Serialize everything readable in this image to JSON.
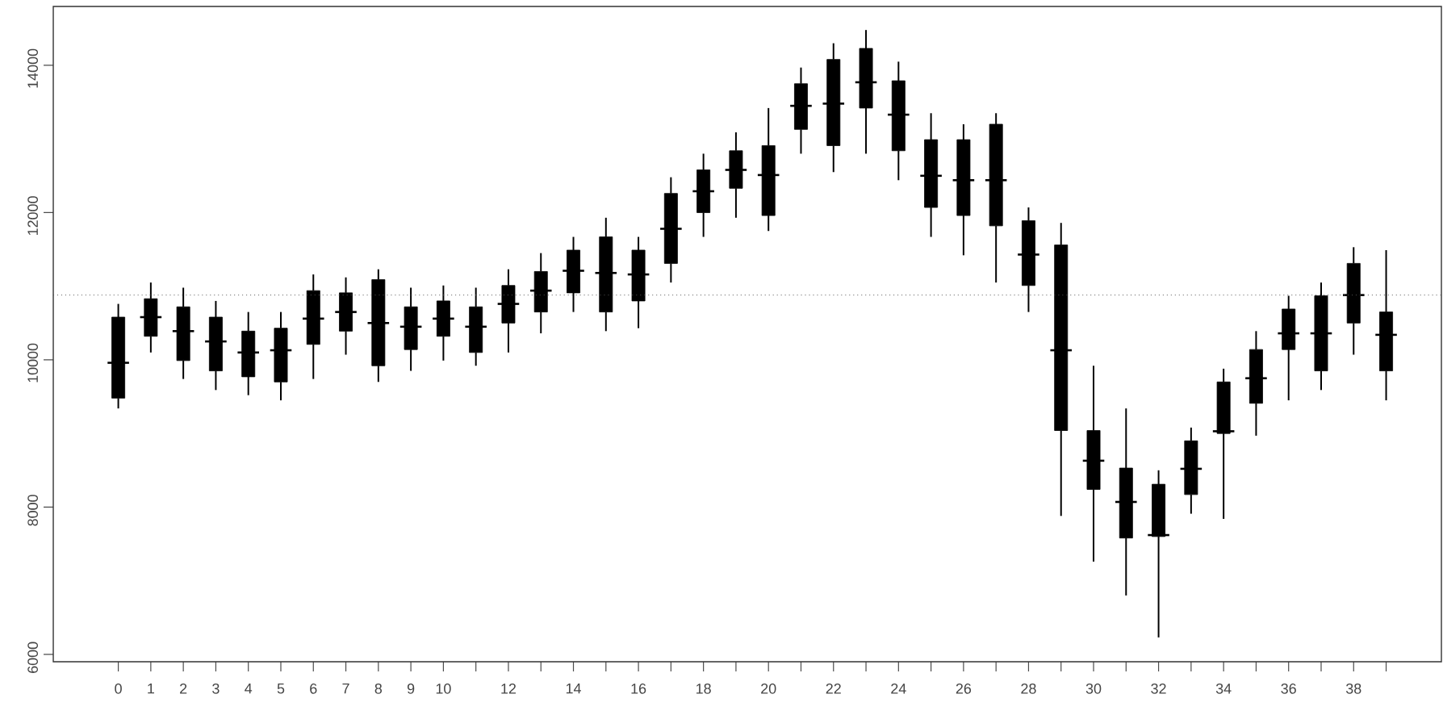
{
  "chart_data": {
    "type": "box",
    "categories": [
      "0",
      "1",
      "2",
      "3",
      "4",
      "5",
      "6",
      "7",
      "8",
      "9",
      "10",
      null,
      "12",
      null,
      "14",
      null,
      "16",
      null,
      "18",
      null,
      "20",
      null,
      "22",
      null,
      "24",
      null,
      "26",
      null,
      "28",
      null,
      "30",
      null,
      "32",
      null,
      "34",
      null,
      "36",
      null,
      "38",
      null
    ],
    "series": [
      {
        "color": "#000000",
        "boxes": [
          {
            "low": 9340,
            "q1": 9480,
            "median": 9960,
            "q3": 10580,
            "high": 10760
          },
          {
            "low": 10100,
            "q1": 10320,
            "median": 10580,
            "q3": 10830,
            "high": 11050
          },
          {
            "low": 9740,
            "q1": 9990,
            "median": 10390,
            "q3": 10720,
            "high": 10980
          },
          {
            "low": 9590,
            "q1": 9850,
            "median": 10250,
            "q3": 10580,
            "high": 10800
          },
          {
            "low": 9520,
            "q1": 9770,
            "median": 10100,
            "q3": 10390,
            "high": 10650
          },
          {
            "low": 9450,
            "q1": 9700,
            "median": 10130,
            "q3": 10430,
            "high": 10650
          },
          {
            "low": 9740,
            "q1": 10210,
            "median": 10560,
            "q3": 10940,
            "high": 11160
          },
          {
            "low": 10070,
            "q1": 10390,
            "median": 10650,
            "q3": 10910,
            "high": 11120
          },
          {
            "low": 9700,
            "q1": 9920,
            "median": 10500,
            "q3": 11090,
            "high": 11230
          },
          {
            "low": 9850,
            "q1": 10140,
            "median": 10450,
            "q3": 10720,
            "high": 10980
          },
          {
            "low": 9990,
            "q1": 10320,
            "median": 10560,
            "q3": 10800,
            "high": 11010
          },
          {
            "low": 9920,
            "q1": 10100,
            "median": 10450,
            "q3": 10720,
            "high": 10980
          },
          {
            "low": 10100,
            "q1": 10500,
            "median": 10760,
            "q3": 11010,
            "high": 11230
          },
          {
            "low": 10360,
            "q1": 10650,
            "median": 10940,
            "q3": 11200,
            "high": 11450
          },
          {
            "low": 10650,
            "q1": 10910,
            "median": 11210,
            "q3": 11490,
            "high": 11670
          },
          {
            "low": 10390,
            "q1": 10650,
            "median": 11180,
            "q3": 11670,
            "high": 11930
          },
          {
            "low": 10430,
            "q1": 10800,
            "median": 11160,
            "q3": 11490,
            "high": 11670
          },
          {
            "low": 11050,
            "q1": 11310,
            "median": 11780,
            "q3": 12260,
            "high": 12480
          },
          {
            "low": 11670,
            "q1": 12000,
            "median": 12290,
            "q3": 12580,
            "high": 12800
          },
          {
            "low": 11930,
            "q1": 12330,
            "median": 12580,
            "q3": 12840,
            "high": 13090
          },
          {
            "low": 11750,
            "q1": 11960,
            "median": 12510,
            "q3": 12910,
            "high": 13420
          },
          {
            "low": 12800,
            "q1": 13130,
            "median": 13450,
            "q3": 13750,
            "high": 13970
          },
          {
            "low": 12550,
            "q1": 12910,
            "median": 13480,
            "q3": 14080,
            "high": 14300
          },
          {
            "low": 12800,
            "q1": 13420,
            "median": 13770,
            "q3": 14230,
            "high": 14480
          },
          {
            "low": 12440,
            "q1": 12840,
            "median": 13330,
            "q3": 13790,
            "high": 14050
          },
          {
            "low": 11670,
            "q1": 12070,
            "median": 12500,
            "q3": 12990,
            "high": 13350
          },
          {
            "low": 11420,
            "q1": 11960,
            "median": 12440,
            "q3": 12990,
            "high": 13200
          },
          {
            "low": 11050,
            "q1": 11820,
            "median": 12440,
            "q3": 13200,
            "high": 13350
          },
          {
            "low": 10650,
            "q1": 11010,
            "median": 11430,
            "q3": 11890,
            "high": 12070
          },
          {
            "low": 7880,
            "q1": 9040,
            "median": 10130,
            "q3": 11560,
            "high": 11860
          },
          {
            "low": 7260,
            "q1": 8240,
            "median": 8630,
            "q3": 9040,
            "high": 9920
          },
          {
            "low": 6800,
            "q1": 7580,
            "median": 8070,
            "q3": 8530,
            "high": 9340
          },
          {
            "low": 6230,
            "q1": 7600,
            "median": 7620,
            "q3": 8310,
            "high": 8500
          },
          {
            "low": 7910,
            "q1": 8170,
            "median": 8520,
            "q3": 8900,
            "high": 9080
          },
          {
            "low": 7840,
            "q1": 9000,
            "median": 9030,
            "q3": 9700,
            "high": 9880
          },
          {
            "low": 8970,
            "q1": 9410,
            "median": 9750,
            "q3": 10140,
            "high": 10390
          },
          {
            "low": 9450,
            "q1": 10140,
            "median": 10360,
            "q3": 10690,
            "high": 10870
          },
          {
            "low": 9590,
            "q1": 9850,
            "median": 10360,
            "q3": 10870,
            "high": 11050
          },
          {
            "low": 10070,
            "q1": 10500,
            "median": 10880,
            "q3": 11310,
            "high": 11530
          },
          {
            "low": 9450,
            "q1": 9850,
            "median": 10340,
            "q3": 10650,
            "high": 11490
          }
        ]
      }
    ],
    "ylim": [
      5900,
      14800
    ],
    "yticks": [
      6000,
      8000,
      10000,
      12000,
      14000
    ],
    "ref_lines": [
      {
        "axis": "y",
        "value": 10880,
        "color": "#555555",
        "line_style": "dotted"
      }
    ]
  }
}
